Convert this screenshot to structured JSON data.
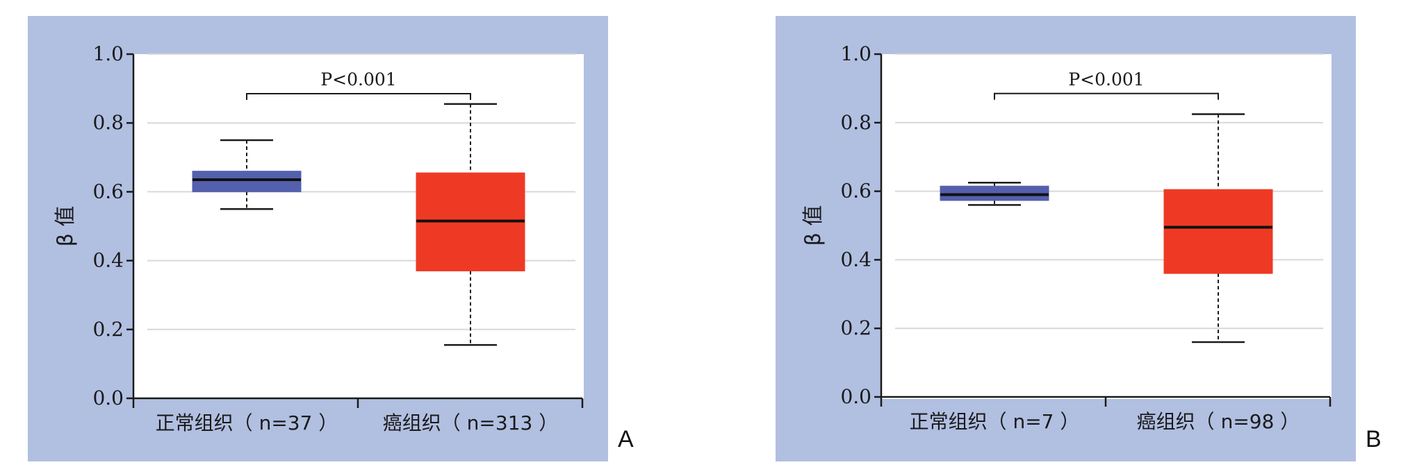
{
  "colors": {
    "panel_bg": "#b1bfe1",
    "plot_bg": "#ffffff",
    "normal_box": "#5460ad",
    "cancer_box": "#ee3a24",
    "gridline": "#d8d8d8",
    "axis": "#1a1a1a"
  },
  "chart_data": [
    {
      "type": "box",
      "panel_label": "A",
      "ylabel": "β 值",
      "ylim": [
        0,
        1.0
      ],
      "yticks": [
        "0.0",
        "0.2",
        "0.4",
        "0.6",
        "0.8",
        "1.0"
      ],
      "grid": true,
      "categories": [
        "正常组织（ n=37 ）",
        "癌组织（ n=313 ）"
      ],
      "boxes": [
        {
          "whisker_low": 0.55,
          "q1": 0.6,
          "median": 0.635,
          "q3": 0.66,
          "whisker_high": 0.75,
          "color": "#5460ad"
        },
        {
          "whisker_low": 0.155,
          "q1": 0.37,
          "median": 0.515,
          "q3": 0.655,
          "whisker_high": 0.855,
          "color": "#ee3a24"
        }
      ],
      "significance": {
        "text": "P<0.001",
        "y": 0.885
      }
    },
    {
      "type": "box",
      "panel_label": "B",
      "ylabel": "β 值",
      "ylim": [
        0,
        1.0
      ],
      "yticks": [
        "0.0",
        "0.2",
        "0.4",
        "0.6",
        "0.8",
        "1.0"
      ],
      "grid": true,
      "categories": [
        "正常组织（ n=7 ）",
        "癌组织（ n=98 ）"
      ],
      "boxes": [
        {
          "whisker_low": 0.56,
          "q1": 0.573,
          "median": 0.59,
          "q3": 0.615,
          "whisker_high": 0.625,
          "color": "#5460ad"
        },
        {
          "whisker_low": 0.16,
          "q1": 0.36,
          "median": 0.495,
          "q3": 0.605,
          "whisker_high": 0.825,
          "color": "#ee3a24"
        }
      ],
      "significance": {
        "text": "P<0.001",
        "y": 0.885
      }
    }
  ]
}
